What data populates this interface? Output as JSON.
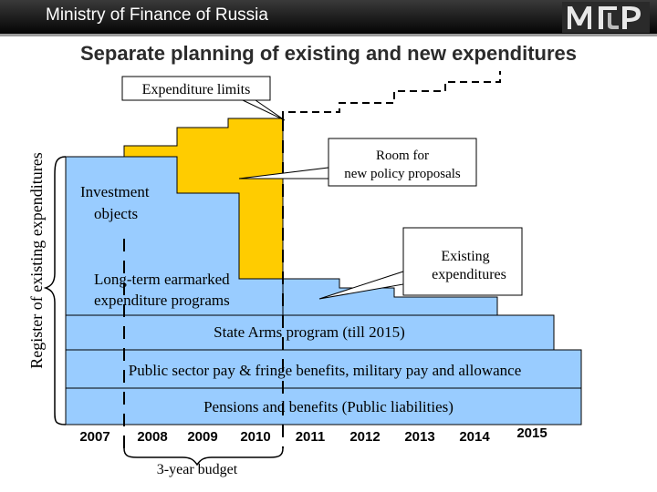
{
  "header": {
    "title": "Ministry of Finance of Russia"
  },
  "slide": {
    "title": "Separate planning of existing and new expenditures"
  },
  "labels": {
    "expenditure_limits": "Expenditure limits",
    "register": "Register of existing expenditures",
    "room_line1": "Room for",
    "room_line2": "new policy proposals",
    "investment_line1": "Investment",
    "investment_line2": "objects",
    "existing_line1": "Existing",
    "existing_line2": "expenditures",
    "longterm_line1": "Long-term earmarked",
    "longterm_line2": "expenditure programs",
    "arms": "State Arms program (till 2015)",
    "pay": "Public sector pay & fringe benefits, military pay and allowance",
    "pensions": "Pensions and benefits (Public liabilities)",
    "budget": "3-year budget"
  },
  "years": [
    "2007",
    "2008",
    "2009",
    "2010",
    "2011",
    "2012",
    "2013",
    "2014",
    "2015"
  ],
  "colors": {
    "header_bg": "#1c1c1c",
    "existing_blue": "#99ccff",
    "new_policy_yellow": "#ffcc00",
    "title_text": "#2b2b2b"
  }
}
